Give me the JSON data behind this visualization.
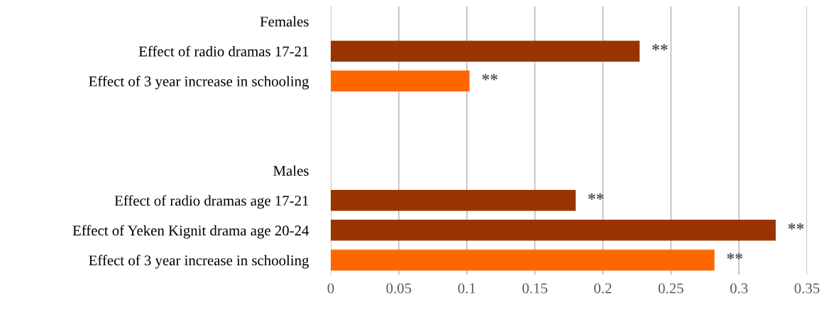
{
  "chart_data": {
    "type": "bar",
    "orientation": "horizontal",
    "categories": [
      "Females",
      "Effect of radio dramas 17-21",
      "Effect of 3 year increase in schooling",
      null,
      null,
      "Males",
      "Effect of radio dramas age 17-21",
      "Effect of Yeken Kignit drama age 20-24",
      "Effect of 3 year increase in schooling"
    ],
    "values": [
      null,
      0.227,
      0.102,
      null,
      null,
      null,
      0.18,
      0.327,
      0.282
    ],
    "colors": [
      "#993300",
      "#993300",
      "#ff6600",
      "#993300",
      "#993300",
      "#993300",
      "#993300",
      "#993300",
      "#ff6600"
    ],
    "value_labels": [
      null,
      "**",
      "**",
      null,
      null,
      null,
      "**",
      "**",
      "**"
    ],
    "xlim": [
      0,
      0.35
    ],
    "xticks": [
      0,
      0.05,
      0.1,
      0.15,
      0.2,
      0.25,
      0.3,
      0.35
    ],
    "grid": "x"
  }
}
